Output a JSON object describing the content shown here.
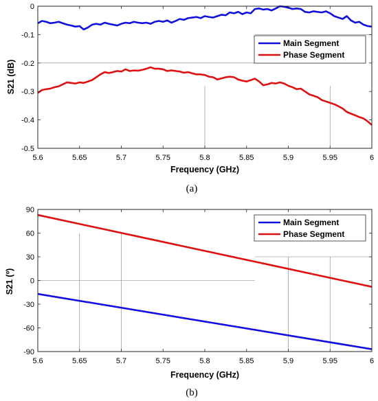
{
  "charts": [
    {
      "type": "line",
      "xlabel": "Frequency (GHz)",
      "ylabel": "S21 (dB)",
      "caption": "(a)",
      "xlim": [
        5.6,
        6.0
      ],
      "ylim": [
        -0.5,
        0
      ],
      "xticks": [
        5.6,
        5.65,
        5.7,
        5.75,
        5.8,
        5.85,
        5.9,
        5.95,
        6
      ],
      "xtick_labels": [
        "5.6",
        "5.65",
        "5.7",
        "5.75",
        "5.8",
        "5.85",
        "5.9",
        "5.95",
        "6"
      ],
      "yticks": [
        0,
        -0.1,
        -0.2,
        -0.3,
        -0.4,
        -0.5
      ],
      "ytick_labels": [
        "0",
        "-0.1",
        "-0.2",
        "-0.3",
        "-0.4",
        "-0.5"
      ],
      "legend_position": "top-right",
      "series": [
        {
          "name": "Main Segment",
          "color": "#1010e0",
          "x": [
            5.6,
            5.605,
            5.61,
            5.615,
            5.62,
            5.625,
            5.63,
            5.635,
            5.64,
            5.645,
            5.65,
            5.655,
            5.66,
            5.665,
            5.67,
            5.675,
            5.68,
            5.685,
            5.69,
            5.695,
            5.7,
            5.705,
            5.71,
            5.715,
            5.72,
            5.725,
            5.73,
            5.735,
            5.74,
            5.745,
            5.75,
            5.755,
            5.76,
            5.765,
            5.77,
            5.775,
            5.78,
            5.785,
            5.79,
            5.795,
            5.8,
            5.805,
            5.81,
            5.815,
            5.82,
            5.825,
            5.83,
            5.835,
            5.84,
            5.845,
            5.85,
            5.855,
            5.86,
            5.865,
            5.87,
            5.875,
            5.88,
            5.885,
            5.89,
            5.895,
            5.9,
            5.905,
            5.91,
            5.915,
            5.92,
            5.925,
            5.93,
            5.935,
            5.94,
            5.945,
            5.95,
            5.955,
            5.96,
            5.965,
            5.97,
            5.975,
            5.98,
            5.985,
            5.99,
            5.995,
            6.0
          ],
          "y": [
            -0.06,
            -0.052,
            -0.055,
            -0.06,
            -0.058,
            -0.055,
            -0.06,
            -0.065,
            -0.068,
            -0.072,
            -0.07,
            -0.082,
            -0.075,
            -0.065,
            -0.062,
            -0.065,
            -0.058,
            -0.062,
            -0.065,
            -0.068,
            -0.062,
            -0.058,
            -0.06,
            -0.055,
            -0.058,
            -0.06,
            -0.058,
            -0.062,
            -0.055,
            -0.052,
            -0.055,
            -0.05,
            -0.058,
            -0.052,
            -0.045,
            -0.048,
            -0.042,
            -0.04,
            -0.038,
            -0.042,
            -0.035,
            -0.038,
            -0.04,
            -0.035,
            -0.03,
            -0.032,
            -0.022,
            -0.025,
            -0.02,
            -0.028,
            -0.022,
            -0.025,
            -0.01,
            -0.008,
            -0.012,
            -0.01,
            -0.015,
            -0.008,
            0.0,
            -0.002,
            -0.005,
            -0.01,
            -0.008,
            -0.01,
            -0.02,
            -0.022,
            -0.018,
            -0.02,
            -0.022,
            -0.018,
            -0.025,
            -0.035,
            -0.04,
            -0.045,
            -0.035,
            -0.05,
            -0.058,
            -0.055,
            -0.065,
            -0.07,
            -0.072
          ]
        },
        {
          "name": "Phase Segment",
          "color": "#e01010",
          "x": [
            5.6,
            5.605,
            5.61,
            5.615,
            5.62,
            5.625,
            5.63,
            5.635,
            5.64,
            5.645,
            5.65,
            5.655,
            5.66,
            5.665,
            5.67,
            5.675,
            5.68,
            5.685,
            5.69,
            5.695,
            5.7,
            5.705,
            5.71,
            5.715,
            5.72,
            5.725,
            5.73,
            5.735,
            5.74,
            5.745,
            5.75,
            5.755,
            5.76,
            5.765,
            5.77,
            5.775,
            5.78,
            5.785,
            5.79,
            5.795,
            5.8,
            5.805,
            5.81,
            5.815,
            5.82,
            5.825,
            5.83,
            5.835,
            5.84,
            5.845,
            5.85,
            5.855,
            5.86,
            5.865,
            5.87,
            5.875,
            5.88,
            5.885,
            5.89,
            5.895,
            5.9,
            5.905,
            5.91,
            5.915,
            5.92,
            5.925,
            5.93,
            5.935,
            5.94,
            5.945,
            5.95,
            5.955,
            5.96,
            5.965,
            5.97,
            5.975,
            5.98,
            5.985,
            5.99,
            5.995,
            6.0
          ],
          "y": [
            -0.305,
            -0.295,
            -0.292,
            -0.29,
            -0.285,
            -0.282,
            -0.275,
            -0.268,
            -0.27,
            -0.272,
            -0.268,
            -0.27,
            -0.265,
            -0.26,
            -0.25,
            -0.24,
            -0.232,
            -0.235,
            -0.232,
            -0.228,
            -0.23,
            -0.222,
            -0.228,
            -0.226,
            -0.227,
            -0.224,
            -0.22,
            -0.215,
            -0.22,
            -0.22,
            -0.222,
            -0.228,
            -0.226,
            -0.228,
            -0.23,
            -0.234,
            -0.232,
            -0.236,
            -0.24,
            -0.24,
            -0.242,
            -0.248,
            -0.25,
            -0.258,
            -0.254,
            -0.25,
            -0.248,
            -0.25,
            -0.258,
            -0.262,
            -0.265,
            -0.26,
            -0.255,
            -0.265,
            -0.278,
            -0.275,
            -0.27,
            -0.272,
            -0.268,
            -0.272,
            -0.28,
            -0.285,
            -0.292,
            -0.29,
            -0.3,
            -0.31,
            -0.315,
            -0.32,
            -0.33,
            -0.335,
            -0.34,
            -0.345,
            -0.352,
            -0.36,
            -0.372,
            -0.378,
            -0.384,
            -0.39,
            -0.395,
            -0.405,
            -0.418
          ]
        }
      ]
    },
    {
      "type": "line",
      "xlabel": "Frequency (GHz)",
      "ylabel": "S21 (º)",
      "caption": "(b)",
      "xlim": [
        5.6,
        6.0
      ],
      "ylim": [
        -90,
        90
      ],
      "xticks": [
        5.6,
        5.65,
        5.7,
        5.75,
        5.8,
        5.85,
        5.9,
        5.95,
        6
      ],
      "xtick_labels": [
        "5.6",
        "5.65",
        "5.7",
        "5.75",
        "5.8",
        "5.85",
        "5.9",
        "5.95",
        "6"
      ],
      "yticks": [
        90,
        60,
        30,
        0,
        -30,
        -60,
        -90
      ],
      "ytick_labels": [
        "90",
        "60",
        "30",
        "0",
        "-30",
        "-60",
        "-90"
      ],
      "legend_position": "top-right",
      "series": [
        {
          "name": "Main Segment",
          "color": "#1010e0",
          "x": [
            5.6,
            6.0
          ],
          "y": [
            -17,
            -87
          ]
        },
        {
          "name": "Phase Segment",
          "color": "#e01010",
          "x": [
            5.6,
            6.0
          ],
          "y": [
            83,
            -8
          ]
        }
      ]
    }
  ]
}
